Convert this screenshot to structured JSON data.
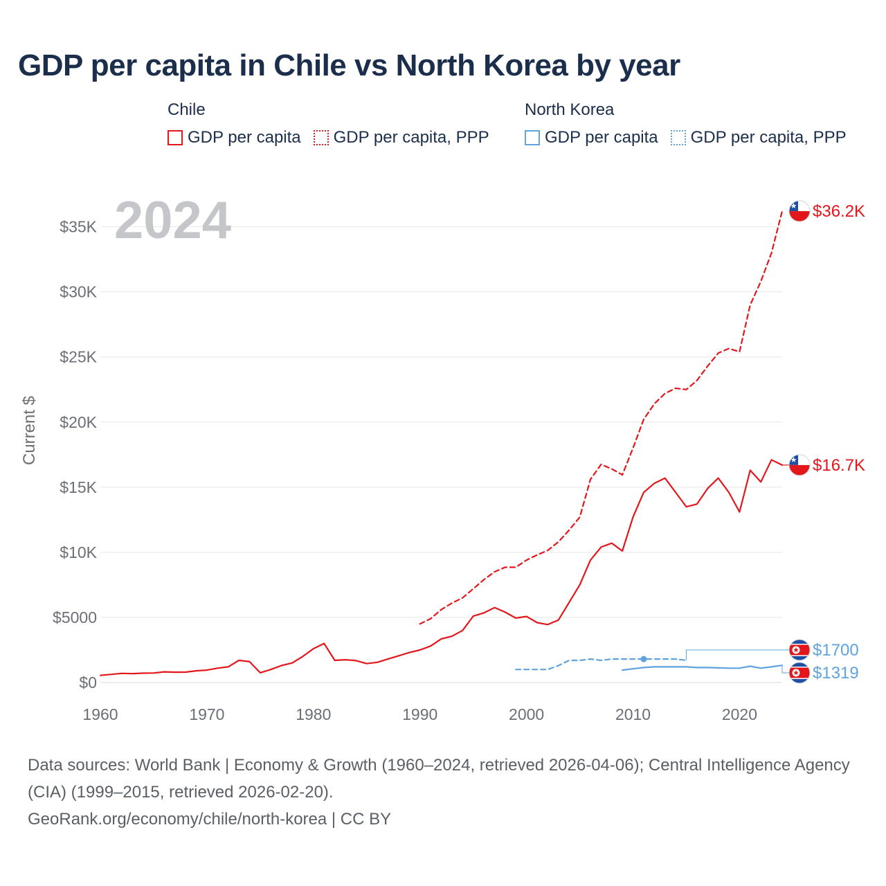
{
  "title": "GDP per capita in Chile vs North Korea by year",
  "legend": {
    "chile": {
      "label": "Chile",
      "solid": "GDP per capita",
      "dotted": "GDP per capita, PPP"
    },
    "north_korea": {
      "label": "North Korea",
      "solid": "GDP per capita",
      "dotted": "GDP per capita, PPP"
    }
  },
  "colors": {
    "chile": "#e3161b",
    "north_korea": "#5ea3e0",
    "year_watermark": "#c4c6c9",
    "axis_text": "#6b6f75"
  },
  "year_label": "2024",
  "footer": {
    "sources": "Data sources: World Bank | Economy & Growth (1960–2024, retrieved 2026-04-06); Central Intelligence Agency (CIA) (1999–2015, retrieved 2026-02-20).",
    "credit": "GeoRank.org/economy/chile/north-korea | CC BY"
  },
  "chart_data": {
    "type": "line",
    "title": "GDP per capita in Chile vs North Korea by year",
    "ylabel": "Current $",
    "xlabel": "",
    "xlim": [
      1960,
      2024
    ],
    "ylim": [
      0,
      37000
    ],
    "x_ticks": [
      1960,
      1970,
      1980,
      1990,
      2000,
      2010,
      2020
    ],
    "y_ticks": [
      {
        "value": 0,
        "label": "$0"
      },
      {
        "value": 5000,
        "label": "$5000"
      },
      {
        "value": 10000,
        "label": "$10K"
      },
      {
        "value": 15000,
        "label": "$15K"
      },
      {
        "value": 20000,
        "label": "$20K"
      },
      {
        "value": 25000,
        "label": "$25K"
      },
      {
        "value": 30000,
        "label": "$30K"
      },
      {
        "value": 35000,
        "label": "$35K"
      }
    ],
    "grid": true,
    "series": [
      {
        "name": "Chile GDP per capita",
        "color": "#e3161b",
        "style": "solid",
        "end_label": "$16.7K",
        "x": [
          1960,
          1961,
          1962,
          1963,
          1964,
          1965,
          1966,
          1967,
          1968,
          1969,
          1970,
          1971,
          1972,
          1973,
          1974,
          1975,
          1976,
          1977,
          1978,
          1979,
          1980,
          1981,
          1982,
          1983,
          1984,
          1985,
          1986,
          1987,
          1988,
          1989,
          1990,
          1991,
          1992,
          1993,
          1994,
          1995,
          1996,
          1997,
          1998,
          1999,
          2000,
          2001,
          2002,
          2003,
          2004,
          2005,
          2006,
          2007,
          2008,
          2009,
          2010,
          2011,
          2012,
          2013,
          2014,
          2015,
          2016,
          2017,
          2018,
          2019,
          2020,
          2021,
          2022,
          2023,
          2024
        ],
        "values": [
          550,
          620,
          700,
          680,
          720,
          730,
          820,
          790,
          800,
          900,
          950,
          1100,
          1200,
          1700,
          1600,
          750,
          1000,
          1300,
          1500,
          2000,
          2600,
          3000,
          1700,
          1750,
          1680,
          1450,
          1550,
          1800,
          2050,
          2300,
          2500,
          2800,
          3350,
          3550,
          4000,
          5100,
          5350,
          5750,
          5400,
          4950,
          5070,
          4600,
          4450,
          4800,
          6150,
          7500,
          9400,
          10400,
          10700,
          10100,
          12700,
          14600,
          15300,
          15700,
          14600,
          13500,
          13700,
          14900,
          15700,
          14600,
          13100,
          16300,
          15400,
          17100,
          16700
        ]
      },
      {
        "name": "Chile GDP per capita, PPP",
        "color": "#e3161b",
        "style": "dashed",
        "end_label": "$36.2K",
        "x": [
          1990,
          1991,
          1992,
          1993,
          1994,
          1995,
          1996,
          1997,
          1998,
          1999,
          2000,
          2001,
          2002,
          2003,
          2004,
          2005,
          2006,
          2007,
          2008,
          2009,
          2010,
          2011,
          2012,
          2013,
          2014,
          2015,
          2016,
          2017,
          2018,
          2019,
          2020,
          2021,
          2022,
          2023,
          2024
        ],
        "values": [
          4500,
          4900,
          5600,
          6100,
          6500,
          7200,
          7900,
          8500,
          8850,
          8850,
          9400,
          9800,
          10150,
          10800,
          11700,
          12700,
          15600,
          16750,
          16400,
          15950,
          18000,
          20200,
          21400,
          22200,
          22600,
          22500,
          23200,
          24300,
          25300,
          25650,
          25400,
          29000,
          30800,
          33000,
          36200
        ]
      },
      {
        "name": "North Korea GDP per capita",
        "color": "#5ea3e0",
        "style": "solid",
        "end_label": "$1319",
        "x": [
          2009,
          2010,
          2011,
          2012,
          2013,
          2014,
          2015,
          2016,
          2017,
          2018,
          2019,
          2020,
          2021,
          2022,
          2023,
          2024
        ],
        "values": [
          950,
          1050,
          1150,
          1200,
          1200,
          1200,
          1200,
          1150,
          1150,
          1120,
          1100,
          1100,
          1250,
          1100,
          1200,
          1319
        ]
      },
      {
        "name": "North Korea GDP per capita, PPP",
        "color": "#5ea3e0",
        "style": "dashed",
        "end_label": "$1700",
        "x": [
          1999,
          2000,
          2001,
          2002,
          2003,
          2004,
          2005,
          2006,
          2007,
          2008,
          2009,
          2010,
          2011,
          2012,
          2013,
          2014,
          2015
        ],
        "values": [
          1000,
          1000,
          1000,
          1000,
          1300,
          1700,
          1700,
          1800,
          1700,
          1800,
          1800,
          1800,
          1800,
          1800,
          1800,
          1800,
          1700
        ]
      }
    ]
  }
}
